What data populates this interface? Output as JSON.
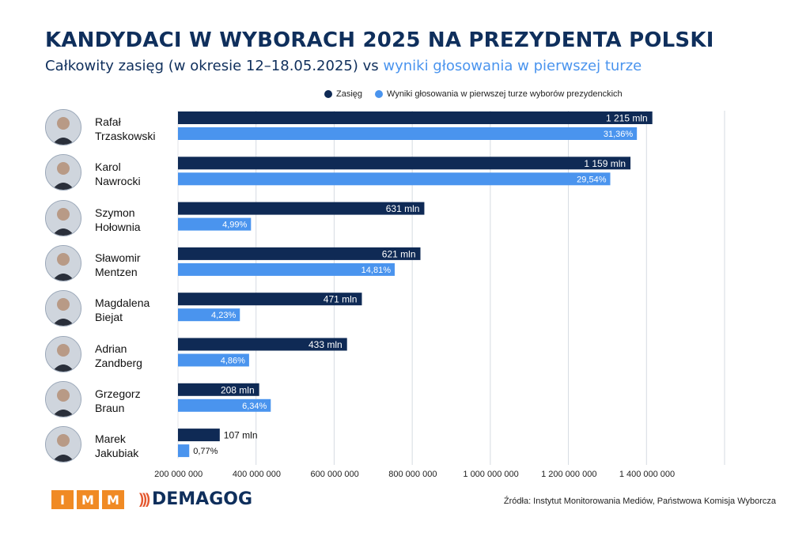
{
  "header": {
    "title": "KANDYDACI W WYBORACH 2025 NA PREZYDENTA POLSKI",
    "subtitle_part1": "Całkowity zasięg (w okresie 12–18.05.2025) vs ",
    "subtitle_part2": "wyniki głosowania w pierwszej turze"
  },
  "colors": {
    "reach": "#0f2a55",
    "votes": "#4a94ee",
    "grid": "#d6dbe2"
  },
  "chart_data": {
    "type": "bar",
    "orientation": "horizontal",
    "categories": [
      "Rafał Trzaskowski",
      "Karol Nawrocki",
      "Szymon Hołownia",
      "Sławomir Mentzen",
      "Magdalena Biejat",
      "Adrian Zandberg",
      "Grzegorz Braun",
      "Marek Jakubiak"
    ],
    "series": [
      {
        "name": "Zasięg",
        "values": [
          1215000000,
          1159000000,
          631000000,
          621000000,
          471000000,
          433000000,
          208000000,
          107000000
        ],
        "labels": [
          "1 215 mln",
          "1 159 mln",
          "631 mln",
          "621 mln",
          "471 mln",
          "433 mln",
          "208 mln",
          "107 mln"
        ]
      },
      {
        "name": "Wyniki głosowania w pierwszej turze wyborów prezydenckich",
        "values": [
          31.36,
          29.54,
          4.99,
          14.81,
          4.23,
          4.86,
          6.34,
          0.77
        ],
        "labels": [
          "31,36%",
          "29,54%",
          "4,99%",
          "14,81%",
          "4,23%",
          "4,86%",
          "6,34%",
          "0,77%"
        ]
      }
    ],
    "xlim": [
      0,
      1400000000
    ],
    "xticks": [
      200000000,
      400000000,
      600000000,
      800000000,
      1000000000,
      1200000000,
      1400000000
    ],
    "xtick_labels": [
      "200 000 000",
      "400 000 000",
      "600 000 000",
      "800 000 000",
      "1 000 000 000",
      "1 200 000 000",
      "1 400 000 000"
    ],
    "legend_position": "top",
    "grid": true
  },
  "candidates": [
    {
      "first": "Rafał",
      "last": "Trzaskowski",
      "avatar": "person-photo-icon"
    },
    {
      "first": "Karol",
      "last": "Nawrocki",
      "avatar": "person-photo-icon"
    },
    {
      "first": "Szymon",
      "last": "Hołownia",
      "avatar": "person-photo-icon"
    },
    {
      "first": "Sławomir",
      "last": "Mentzen",
      "avatar": "person-photo-icon"
    },
    {
      "first": "Magdalena",
      "last": "Biejat",
      "avatar": "person-photo-icon"
    },
    {
      "first": "Adrian",
      "last": "Zandberg",
      "avatar": "person-photo-icon"
    },
    {
      "first": "Grzegorz",
      "last": "Braun",
      "avatar": "person-photo-icon"
    },
    {
      "first": "Marek",
      "last": "Jakubiak",
      "avatar": "person-photo-icon"
    }
  ],
  "footer": {
    "imm_letters": [
      "I",
      "M",
      "M"
    ],
    "demagog": "DEMAGOG",
    "source": "Źródła: Instytut Monitorowania Mediów, Państwowa Komisja Wyborcza"
  }
}
